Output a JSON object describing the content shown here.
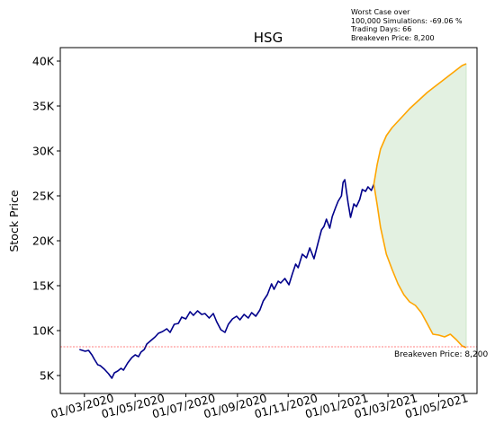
{
  "annotation": {
    "line1": "Worst Case over",
    "line2": "100,000 Simulations: -69.06 %",
    "line3": "Trading Days: 66",
    "line4": "Breakeven Price: 8,200"
  },
  "chart_data": {
    "type": "line",
    "title": "HSG",
    "xlabel": "",
    "ylabel": "Stock Price",
    "ylim": [
      3000,
      41500
    ],
    "yticks": [
      5000,
      10000,
      15000,
      20000,
      25000,
      30000,
      35000,
      40000
    ],
    "ytick_labels": [
      "5K",
      "10K",
      "15K",
      "20K",
      "25K",
      "30K",
      "35K",
      "40K"
    ],
    "xticks": [
      "2020-03-01",
      "2020-05-01",
      "2020-07-01",
      "2020-09-01",
      "2020-11-01",
      "2021-01-01",
      "2021-03-01",
      "2021-05-01"
    ],
    "xtick_labels": [
      "01/03/2020",
      "01/05/2020",
      "01/07/2020",
      "01/09/2020",
      "01/11/2020",
      "01/01/2021",
      "01/03/2021",
      "01/05/2021"
    ],
    "xlim": [
      "2020-02-01",
      "2021-06-16"
    ],
    "grid": false,
    "colors": {
      "history": "#00008b",
      "best": "#ffa500",
      "worst": "#ffa500",
      "band": "#e3f1e1",
      "breakeven": "#ff0000"
    },
    "breakeven": {
      "value": 8200,
      "label": "Breakeven Price: 8,200"
    },
    "series": [
      {
        "role": "history",
        "points": [
          [
            "2020-02-24",
            7900
          ],
          [
            "2020-03-02",
            7700
          ],
          [
            "2020-03-06",
            7800
          ],
          [
            "2020-03-10",
            7300
          ],
          [
            "2020-03-13",
            6800
          ],
          [
            "2020-03-17",
            6200
          ],
          [
            "2020-03-20",
            6100
          ],
          [
            "2020-03-25",
            5700
          ],
          [
            "2020-03-30",
            5200
          ],
          [
            "2020-04-03",
            4700
          ],
          [
            "2020-04-06",
            5300
          ],
          [
            "2020-04-10",
            5500
          ],
          [
            "2020-04-14",
            5800
          ],
          [
            "2020-04-17",
            5600
          ],
          [
            "2020-04-22",
            6400
          ],
          [
            "2020-04-27",
            7000
          ],
          [
            "2020-05-01",
            7300
          ],
          [
            "2020-05-05",
            7100
          ],
          [
            "2020-05-08",
            7600
          ],
          [
            "2020-05-12",
            7900
          ],
          [
            "2020-05-15",
            8500
          ],
          [
            "2020-05-20",
            8900
          ],
          [
            "2020-05-25",
            9300
          ],
          [
            "2020-05-29",
            9700
          ],
          [
            "2020-06-03",
            9900
          ],
          [
            "2020-06-08",
            10200
          ],
          [
            "2020-06-12",
            9800
          ],
          [
            "2020-06-17",
            10700
          ],
          [
            "2020-06-22",
            10800
          ],
          [
            "2020-06-26",
            11500
          ],
          [
            "2020-07-01",
            11300
          ],
          [
            "2020-07-06",
            12100
          ],
          [
            "2020-07-10",
            11700
          ],
          [
            "2020-07-15",
            12200
          ],
          [
            "2020-07-20",
            11800
          ],
          [
            "2020-07-24",
            11900
          ],
          [
            "2020-07-29",
            11400
          ],
          [
            "2020-08-03",
            11900
          ],
          [
            "2020-08-07",
            11000
          ],
          [
            "2020-08-12",
            10100
          ],
          [
            "2020-08-17",
            9800
          ],
          [
            "2020-08-21",
            10700
          ],
          [
            "2020-08-26",
            11300
          ],
          [
            "2020-08-31",
            11600
          ],
          [
            "2020-09-04",
            11200
          ],
          [
            "2020-09-09",
            11800
          ],
          [
            "2020-09-14",
            11400
          ],
          [
            "2020-09-18",
            12000
          ],
          [
            "2020-09-23",
            11600
          ],
          [
            "2020-09-28",
            12300
          ],
          [
            "2020-10-02",
            13300
          ],
          [
            "2020-10-07",
            14000
          ],
          [
            "2020-10-12",
            15200
          ],
          [
            "2020-10-15",
            14600
          ],
          [
            "2020-10-20",
            15500
          ],
          [
            "2020-10-23",
            15300
          ],
          [
            "2020-10-28",
            15800
          ],
          [
            "2020-11-02",
            15100
          ],
          [
            "2020-11-06",
            16300
          ],
          [
            "2020-11-10",
            17400
          ],
          [
            "2020-11-13",
            17000
          ],
          [
            "2020-11-18",
            18500
          ],
          [
            "2020-11-23",
            18100
          ],
          [
            "2020-11-27",
            19200
          ],
          [
            "2020-12-02",
            18000
          ],
          [
            "2020-12-07",
            19800
          ],
          [
            "2020-12-11",
            21200
          ],
          [
            "2020-12-14",
            21600
          ],
          [
            "2020-12-17",
            22400
          ],
          [
            "2020-12-21",
            21400
          ],
          [
            "2020-12-24",
            22700
          ],
          [
            "2020-12-28",
            23700
          ],
          [
            "2020-12-31",
            24400
          ],
          [
            "2021-01-04",
            25000
          ],
          [
            "2021-01-06",
            26500
          ],
          [
            "2021-01-08",
            26800
          ],
          [
            "2021-01-12",
            24200
          ],
          [
            "2021-01-15",
            22600
          ],
          [
            "2021-01-19",
            24100
          ],
          [
            "2021-01-22",
            23800
          ],
          [
            "2021-01-26",
            24600
          ],
          [
            "2021-01-29",
            25700
          ],
          [
            "2021-02-02",
            25500
          ],
          [
            "2021-02-05",
            26000
          ],
          [
            "2021-02-09",
            25600
          ],
          [
            "2021-02-12",
            26300
          ]
        ]
      },
      {
        "role": "best",
        "points": [
          [
            "2021-02-12",
            26300
          ],
          [
            "2021-02-16",
            28500
          ],
          [
            "2021-02-20",
            30200
          ],
          [
            "2021-02-27",
            31700
          ],
          [
            "2021-03-06",
            32600
          ],
          [
            "2021-03-13",
            33300
          ],
          [
            "2021-03-20",
            34000
          ],
          [
            "2021-03-27",
            34700
          ],
          [
            "2021-04-03",
            35300
          ],
          [
            "2021-04-10",
            35900
          ],
          [
            "2021-04-17",
            36500
          ],
          [
            "2021-04-24",
            37000
          ],
          [
            "2021-05-01",
            37500
          ],
          [
            "2021-05-08",
            38000
          ],
          [
            "2021-05-15",
            38500
          ],
          [
            "2021-05-22",
            39000
          ],
          [
            "2021-05-29",
            39500
          ],
          [
            "2021-06-03",
            39700
          ]
        ]
      },
      {
        "role": "worst",
        "points": [
          [
            "2021-02-12",
            26300
          ],
          [
            "2021-02-16",
            24000
          ],
          [
            "2021-02-20",
            21500
          ],
          [
            "2021-02-27",
            18500
          ],
          [
            "2021-03-06",
            16800
          ],
          [
            "2021-03-13",
            15200
          ],
          [
            "2021-03-20",
            14000
          ],
          [
            "2021-03-27",
            13200
          ],
          [
            "2021-04-03",
            12800
          ],
          [
            "2021-04-10",
            12000
          ],
          [
            "2021-04-17",
            10800
          ],
          [
            "2021-04-24",
            9600
          ],
          [
            "2021-05-01",
            9500
          ],
          [
            "2021-05-08",
            9300
          ],
          [
            "2021-05-15",
            9600
          ],
          [
            "2021-05-22",
            9000
          ],
          [
            "2021-05-29",
            8300
          ],
          [
            "2021-06-03",
            8100
          ]
        ]
      }
    ]
  }
}
